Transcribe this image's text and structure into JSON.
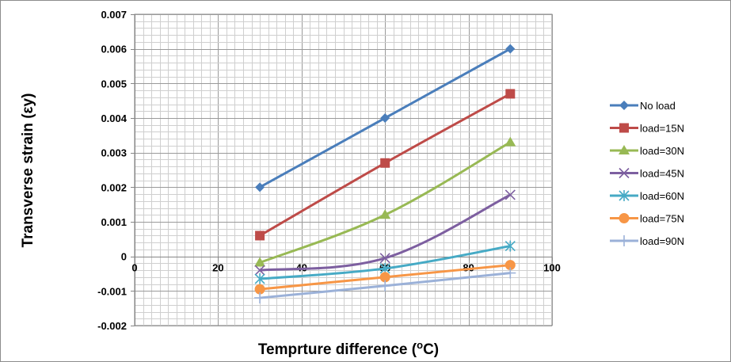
{
  "chart_data": {
    "type": "line",
    "title": "",
    "xlabel": "Temprture difference (",
    "xlabel_sup": "o",
    "xlabel_end": "C)",
    "ylabel": "Transverse strain (εy)",
    "xlim": [
      0,
      100
    ],
    "ylim": [
      -0.002,
      0.007
    ],
    "x_ticks": [
      "0",
      "20",
      "40",
      "60",
      "80",
      "100"
    ],
    "y_ticks": [
      "0.007",
      "0.006",
      "0.005",
      "0.004",
      "0.003",
      "0.002",
      "0.001",
      "0",
      "-0.001",
      "-0.002"
    ],
    "grid": true,
    "legend_position": "right",
    "x": [
      30,
      60,
      90
    ],
    "series": [
      {
        "name": "No load",
        "values": [
          0.002,
          0.004,
          0.006
        ],
        "color": "#4a7ebb",
        "marker": "diamond"
      },
      {
        "name": "load=15N",
        "values": [
          0.0006,
          0.0027,
          0.0047
        ],
        "color": "#be4b48",
        "marker": "square"
      },
      {
        "name": "load=30N",
        "values": [
          -0.00018,
          0.0012,
          0.0033
        ],
        "color": "#98b954",
        "marker": "triangle"
      },
      {
        "name": "load=45N",
        "values": [
          -0.0004,
          -5e-05,
          0.00178
        ],
        "color": "#7d5fa0",
        "marker": "x"
      },
      {
        "name": "load=60N",
        "values": [
          -0.00065,
          -0.00035,
          0.0003
        ],
        "color": "#46aac5",
        "marker": "star"
      },
      {
        "name": "load=75N",
        "values": [
          -0.00095,
          -0.0006,
          -0.00025
        ],
        "color": "#f79646",
        "marker": "circle"
      },
      {
        "name": "load=90N",
        "values": [
          -0.0012,
          -0.00085,
          -0.00048
        ],
        "color": "#9bb1d8",
        "marker": "plus"
      }
    ]
  }
}
